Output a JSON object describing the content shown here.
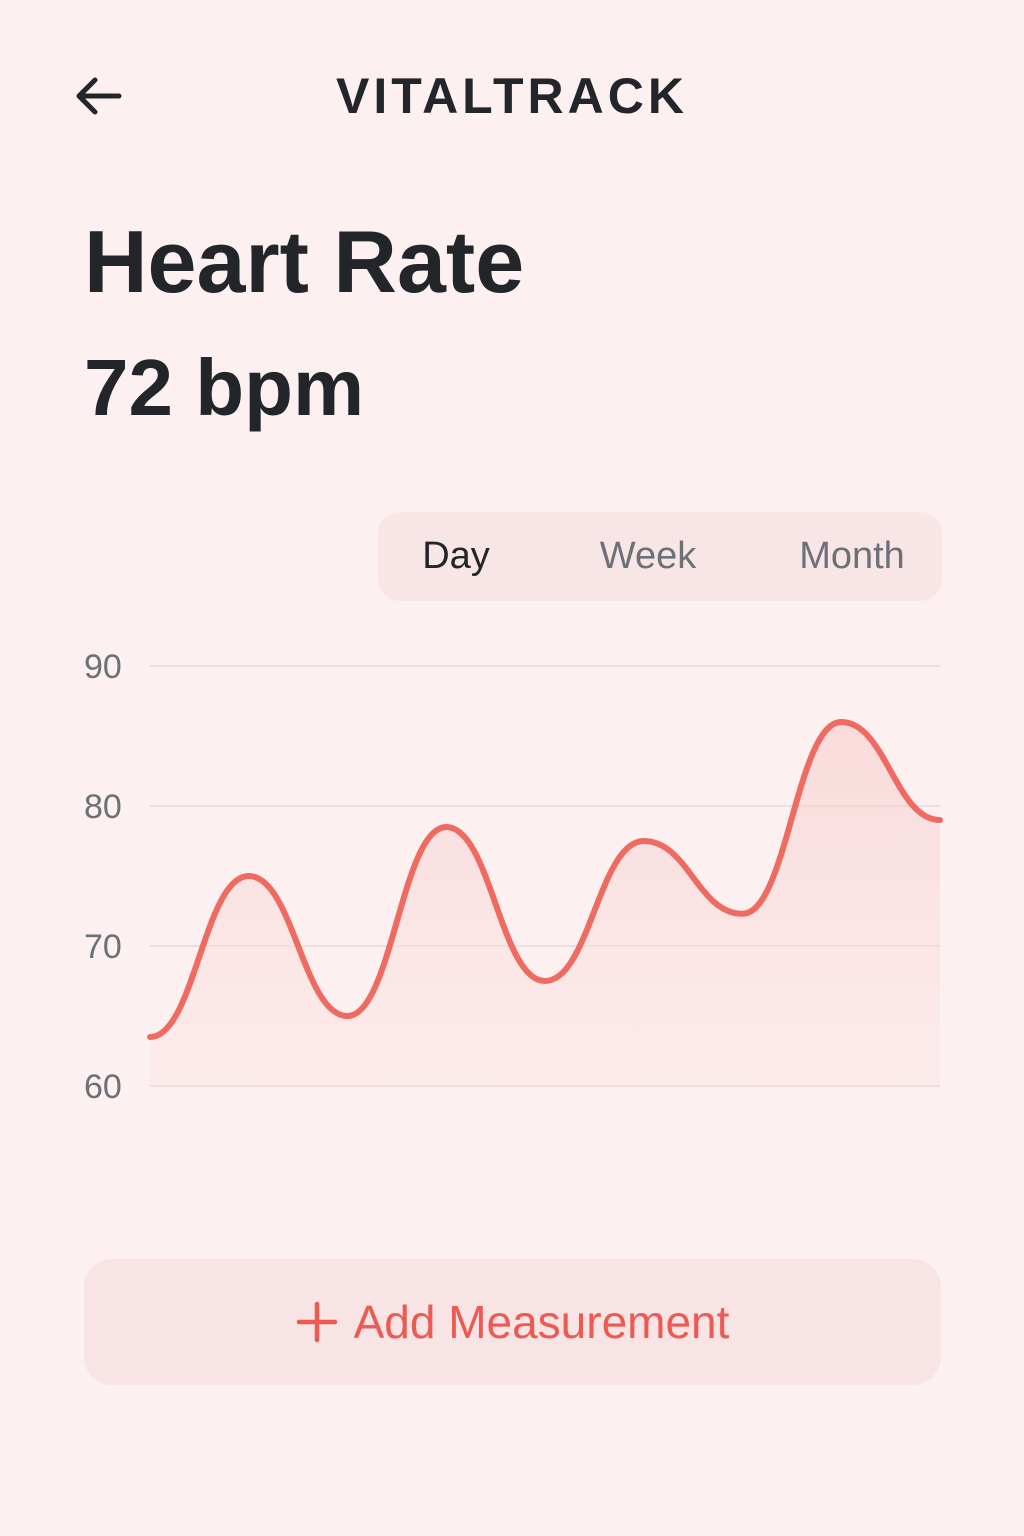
{
  "header": {
    "back_icon": "arrow-left-icon",
    "title": "VITALTRACK"
  },
  "metric": {
    "title": "Heart Rate",
    "value": "72 bpm"
  },
  "range_tabs": [
    {
      "label": "Day",
      "active": true
    },
    {
      "label": "Week",
      "active": false
    },
    {
      "label": "Month",
      "active": false
    }
  ],
  "colors": {
    "background": "#fdf0f0",
    "accent": "#ec5a52",
    "text": "#22262a",
    "muted": "#6b7176"
  },
  "chart_data": {
    "type": "area",
    "y_ticks": [
      "90",
      "80",
      "70",
      "60"
    ],
    "ylim": [
      60,
      90
    ],
    "grid": true,
    "series": [
      {
        "values": [
          63.5,
          75,
          65,
          78.5,
          67.5,
          77.5,
          72.3,
          86,
          79
        ]
      }
    ]
  },
  "actions": {
    "add_icon": "plus-icon",
    "add_label": "Add Measurement"
  }
}
